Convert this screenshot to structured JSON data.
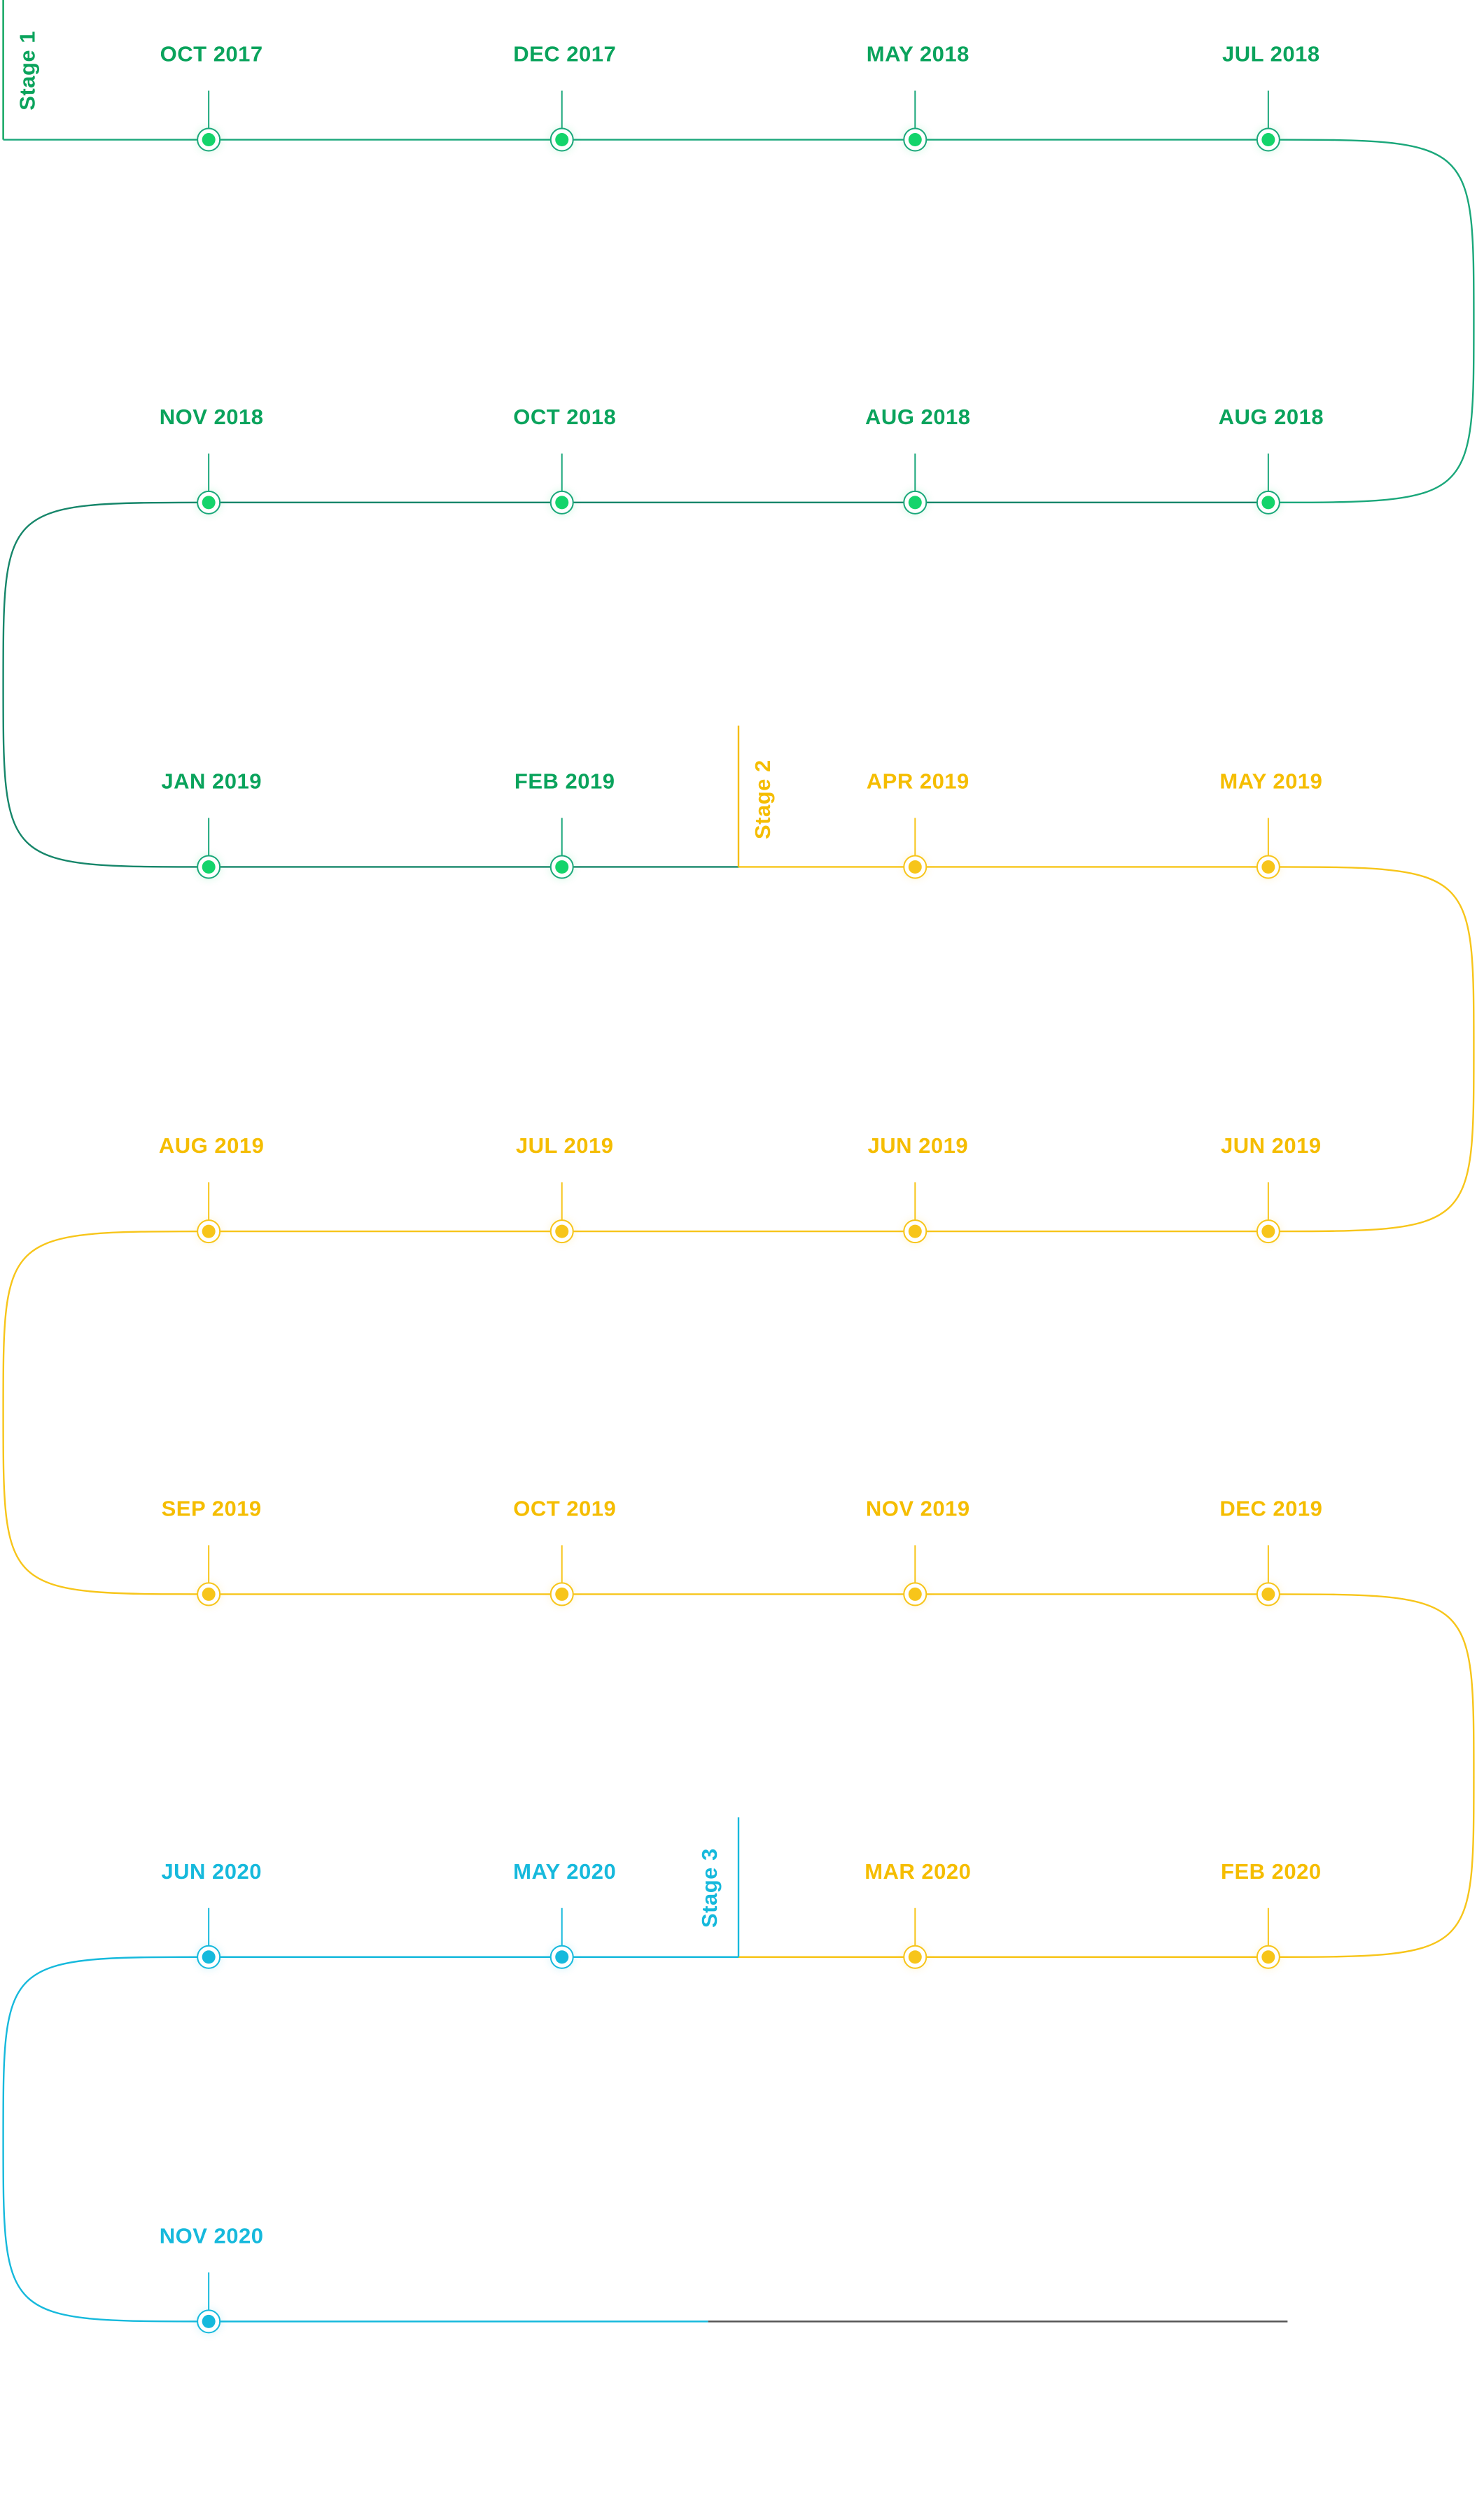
{
  "colors": {
    "stage1_line": "#1aa77a",
    "stage1_line_dark": "#16866a",
    "stage1_label": "#0aa35c",
    "stage1_dot": "#14d46b",
    "stage2": "#f7c51a",
    "stage2_label": "#f5bd00",
    "stage3": "#16b9dc",
    "end_line": "#555555"
  },
  "stages": [
    {
      "label": "Stage 1",
      "key": "stage1"
    },
    {
      "label": "Stage 2",
      "key": "stage2"
    },
    {
      "label": "Stage 3",
      "key": "stage3"
    }
  ],
  "milestones": [
    {
      "label": "OCT 2017",
      "stage": "stage1"
    },
    {
      "label": "DEC 2017",
      "stage": "stage1"
    },
    {
      "label": "MAY 2018",
      "stage": "stage1"
    },
    {
      "label": "JUL 2018",
      "stage": "stage1"
    },
    {
      "label": "AUG 2018",
      "stage": "stage1"
    },
    {
      "label": "AUG 2018",
      "stage": "stage1"
    },
    {
      "label": "OCT 2018",
      "stage": "stage1"
    },
    {
      "label": "NOV 2018",
      "stage": "stage1"
    },
    {
      "label": "JAN 2019",
      "stage": "stage1"
    },
    {
      "label": "FEB 2019",
      "stage": "stage1"
    },
    {
      "label": "APR 2019",
      "stage": "stage2"
    },
    {
      "label": "MAY 2019",
      "stage": "stage2"
    },
    {
      "label": "JUN 2019",
      "stage": "stage2"
    },
    {
      "label": "JUN 2019",
      "stage": "stage2"
    },
    {
      "label": "JUL 2019",
      "stage": "stage2"
    },
    {
      "label": "AUG 2019",
      "stage": "stage2"
    },
    {
      "label": "SEP 2019",
      "stage": "stage2"
    },
    {
      "label": "OCT 2019",
      "stage": "stage2"
    },
    {
      "label": "NOV 2019",
      "stage": "stage2"
    },
    {
      "label": "DEC 2019",
      "stage": "stage2"
    },
    {
      "label": "FEB 2020",
      "stage": "stage2"
    },
    {
      "label": "MAR 2020",
      "stage": "stage2"
    },
    {
      "label": "MAY 2020",
      "stage": "stage3"
    },
    {
      "label": "JUN 2020",
      "stage": "stage3"
    },
    {
      "label": "NOV 2020",
      "stage": "stage3"
    }
  ]
}
